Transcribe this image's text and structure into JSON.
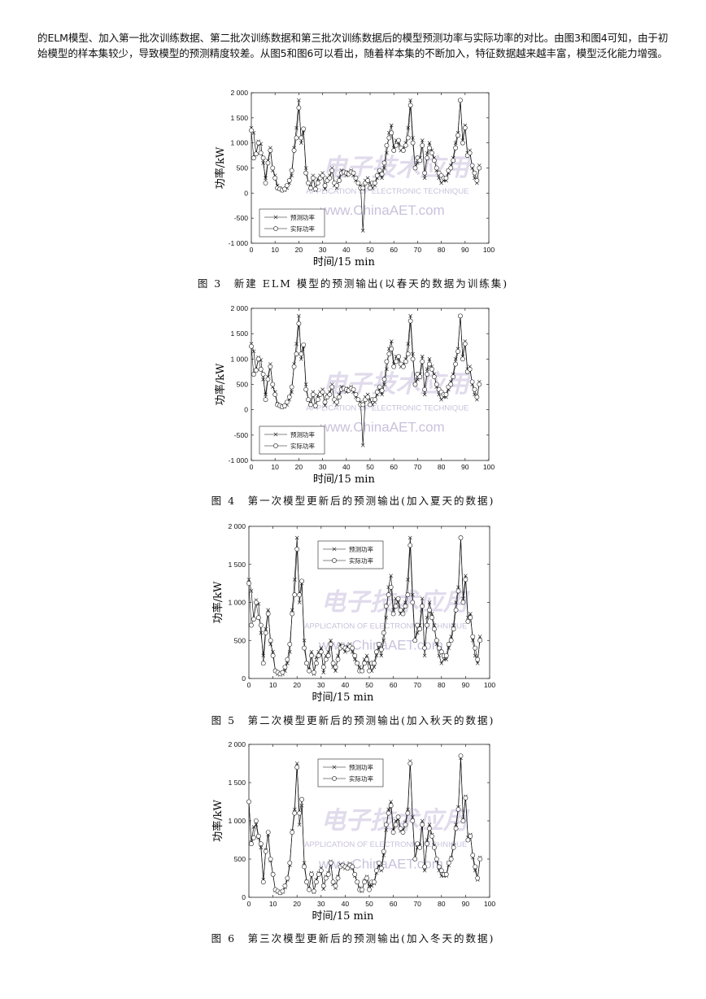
{
  "paragraph": "的ELM模型、加入第一批次训练数据、第二批次训练数据和第三批次训练数据后的模型预测功率与实际功率的对比。由图3和图4可知，由于初始模型的样本集较少，导致模型的预测精度较差。从图5和图6可以看出，随着样本集的不断加入，特征数据越来越丰富，模型泛化能力增强。",
  "watermark": {
    "logo": "电子技术应用",
    "line1": "APPLICATION OF ELECTRONIC TECHNIQUE",
    "line2": "www.ChinaAET.com",
    "color": "#c9c2dc"
  },
  "colors": {
    "line": "#111111",
    "axis": "#222222"
  },
  "figures": [
    {
      "caption": "图 3　新建 ELM 模型的预测输出(以春天的数据为训练集)",
      "ylabel": "功率/kW",
      "xlabel": "时间/15 min",
      "legend_position": "bottom-left",
      "chart_data": {
        "type": "line",
        "ylim": [
          -1000,
          2000
        ],
        "xlim": [
          0,
          100
        ],
        "yticks": [
          "-1 000",
          "-500",
          "0",
          "500",
          "1 000",
          "1 500",
          "2 000"
        ],
        "ytick_values": [
          -1000,
          -500,
          0,
          500,
          1000,
          1500,
          2000
        ],
        "xticks": [
          "0",
          "10",
          "20",
          "30",
          "40",
          "50",
          "60",
          "70",
          "80",
          "90",
          "100"
        ],
        "series": [
          {
            "name": "预测功率",
            "marker": "x",
            "values": [
              1300,
              1200,
              780,
              1030,
              980,
              600,
              300,
              650,
              900,
              450,
              350,
              150,
              100,
              50,
              60,
              100,
              200,
              350,
              900,
              1300,
              1850,
              1000,
              1250,
              500,
              200,
              120,
              350,
              60,
              280,
              350,
              400,
              80,
              300,
              350,
              500,
              150,
              100,
              300,
              450,
              400,
              350,
              420,
              450,
              350,
              250,
              200,
              150,
              -750,
              250,
              300,
              200,
              100,
              150,
              300,
              400,
              300,
              500,
              800,
              1200,
              1350,
              900,
              1050,
              1000,
              850,
              900,
              1000,
              1300,
              1850,
              1100,
              500,
              600,
              700,
              1050,
              300,
              800,
              1000,
              850,
              700,
              450,
              300,
              200,
              250,
              250,
              400,
              550,
              700,
              1000,
              1200,
              1850,
              1050,
              1350,
              800,
              850,
              500,
              300,
              200,
              550
            ]
          },
          {
            "name": "实际功率",
            "marker": "o",
            "values": [
              1250,
              700,
              780,
              1000,
              800,
              700,
              200,
              600,
              850,
              500,
              300,
              100,
              80,
              60,
              80,
              150,
              250,
              450,
              850,
              1100,
              1700,
              1100,
              1280,
              400,
              200,
              100,
              300,
              80,
              200,
              300,
              350,
              150,
              250,
              300,
              450,
              200,
              150,
              250,
              400,
              420,
              400,
              380,
              420,
              400,
              300,
              200,
              100,
              100,
              200,
              250,
              100,
              200,
              200,
              350,
              450,
              380,
              600,
              950,
              1100,
              1200,
              850,
              950,
              1050,
              900,
              850,
              950,
              1100,
              1750,
              1000,
              500,
              700,
              650,
              950,
              400,
              700,
              900,
              800,
              650,
              500,
              400,
              350,
              300,
              300,
              450,
              500,
              650,
              900,
              1150,
              1850,
              1000,
              1300,
              750,
              800,
              550,
              400,
              250,
              500
            ]
          }
        ]
      }
    },
    {
      "caption": "图 4　第一次模型更新后的预测输出(加入夏天的数据)",
      "ylabel": "功率/kW",
      "xlabel": "时间/15 min",
      "legend_position": "bottom-left",
      "chart_data": {
        "type": "line",
        "ylim": [
          -1000,
          2000
        ],
        "xlim": [
          0,
          100
        ],
        "yticks": [
          "-1 000",
          "-500",
          "0",
          "500",
          "1 000",
          "1 500",
          "2 000"
        ],
        "ytick_values": [
          -1000,
          -500,
          0,
          500,
          1000,
          1500,
          2000
        ],
        "xticks": [
          "0",
          "10",
          "20",
          "30",
          "40",
          "50",
          "60",
          "70",
          "80",
          "90",
          "100"
        ],
        "series": [
          {
            "name": "预测功率",
            "marker": "x",
            "values": [
              1300,
              1150,
              780,
              1030,
              980,
              600,
              300,
              650,
              900,
              450,
              350,
              120,
              80,
              50,
              60,
              100,
              200,
              350,
              900,
              1300,
              1850,
              1000,
              1250,
              500,
              200,
              120,
              350,
              60,
              280,
              350,
              400,
              80,
              300,
              350,
              500,
              150,
              100,
              300,
              450,
              400,
              350,
              420,
              450,
              350,
              250,
              200,
              150,
              -700,
              250,
              300,
              200,
              100,
              150,
              300,
              400,
              300,
              500,
              800,
              1200,
              1350,
              900,
              1050,
              1000,
              850,
              900,
              1000,
              1300,
              1850,
              1100,
              500,
              600,
              700,
              1050,
              300,
              800,
              1000,
              850,
              700,
              450,
              300,
              200,
              250,
              250,
              400,
              550,
              700,
              1000,
              1200,
              1850,
              1050,
              1350,
              800,
              850,
              500,
              300,
              200,
              550
            ]
          },
          {
            "name": "实际功率",
            "marker": "o",
            "values": [
              1250,
              700,
              780,
              1000,
              800,
              700,
              200,
              600,
              850,
              500,
              300,
              100,
              80,
              60,
              80,
              150,
              250,
              450,
              850,
              1100,
              1700,
              1100,
              1280,
              400,
              200,
              100,
              300,
              80,
              200,
              300,
              350,
              150,
              250,
              300,
              450,
              200,
              150,
              250,
              400,
              420,
              400,
              380,
              420,
              400,
              300,
              200,
              100,
              100,
              200,
              250,
              100,
              200,
              200,
              350,
              450,
              380,
              600,
              950,
              1100,
              1200,
              850,
              950,
              1050,
              900,
              850,
              950,
              1100,
              1750,
              1000,
              500,
              700,
              650,
              950,
              400,
              700,
              900,
              800,
              650,
              500,
              400,
              350,
              300,
              300,
              450,
              500,
              650,
              900,
              1150,
              1850,
              1000,
              1300,
              750,
              800,
              550,
              400,
              250,
              500
            ]
          }
        ]
      }
    },
    {
      "caption": "图 5　第二次模型更新后的预测输出(加入秋天的数据)",
      "ylabel": "功率/kW",
      "xlabel": "时间/15 min",
      "legend_position": "top-center",
      "chart_data": {
        "type": "line",
        "ylim": [
          0,
          2000
        ],
        "xlim": [
          0,
          100
        ],
        "yticks": [
          "0",
          "500",
          "1 000",
          "1 500",
          "2 000"
        ],
        "ytick_values": [
          0,
          500,
          1000,
          1500,
          2000
        ],
        "xticks": [
          "0",
          "10",
          "20",
          "30",
          "40",
          "50",
          "60",
          "70",
          "80",
          "90",
          "100"
        ],
        "series": [
          {
            "name": "预测功率",
            "marker": "x",
            "values": [
              1300,
              1150,
              780,
              1030,
              980,
              600,
              300,
              650,
              900,
              450,
              350,
              100,
              60,
              50,
              60,
              100,
              200,
              350,
              900,
              1300,
              1850,
              1000,
              1250,
              500,
              200,
              120,
              350,
              60,
              280,
              350,
              400,
              80,
              300,
              350,
              500,
              150,
              100,
              300,
              450,
              400,
              350,
              420,
              450,
              350,
              250,
              200,
              150,
              100,
              250,
              300,
              200,
              100,
              150,
              300,
              400,
              300,
              500,
              800,
              1200,
              1350,
              900,
              1050,
              1000,
              850,
              900,
              1000,
              1300,
              1850,
              1100,
              500,
              600,
              700,
              1050,
              300,
              800,
              1000,
              850,
              700,
              450,
              300,
              200,
              250,
              250,
              400,
              550,
              700,
              1000,
              1200,
              1850,
              1050,
              1350,
              800,
              850,
              500,
              300,
              200,
              550
            ]
          },
          {
            "name": "实际功率",
            "marker": "o",
            "values": [
              1250,
              700,
              780,
              1000,
              800,
              700,
              200,
              600,
              850,
              500,
              300,
              100,
              80,
              60,
              80,
              150,
              250,
              450,
              850,
              1100,
              1700,
              1100,
              1280,
              400,
              200,
              100,
              300,
              80,
              200,
              300,
              350,
              150,
              250,
              300,
              450,
              200,
              150,
              250,
              400,
              420,
              400,
              380,
              420,
              400,
              300,
              200,
              100,
              100,
              200,
              250,
              100,
              200,
              200,
              350,
              450,
              380,
              600,
              950,
              1100,
              1200,
              850,
              950,
              1050,
              900,
              850,
              950,
              1100,
              1750,
              1000,
              500,
              700,
              650,
              950,
              400,
              700,
              900,
              800,
              650,
              500,
              400,
              350,
              300,
              300,
              450,
              500,
              650,
              900,
              1150,
              1850,
              1000,
              1300,
              750,
              800,
              550,
              400,
              250,
              500
            ]
          }
        ]
      }
    },
    {
      "caption": "图 6　第三次模型更新后的预测输出(加入冬天的数据)",
      "ylabel": "功率/kW",
      "xlabel": "时间/15 min",
      "legend_position": "top-center",
      "chart_data": {
        "type": "line",
        "ylim": [
          0,
          2000
        ],
        "xlim": [
          0,
          100
        ],
        "yticks": [
          "0",
          "500",
          "1 000",
          "1 500",
          "2 000"
        ],
        "ytick_values": [
          0,
          500,
          1000,
          1500,
          2000
        ],
        "xticks": [
          "0",
          "10",
          "20",
          "30",
          "40",
          "50",
          "60",
          "70",
          "80",
          "90",
          "100"
        ],
        "series": [
          {
            "name": "预测功率",
            "marker": "x",
            "values": [
              1250,
              720,
              920,
              950,
              780,
              650,
              230,
              620,
              820,
              480,
              300,
              90,
              70,
              55,
              70,
              130,
              230,
              420,
              870,
              1150,
              1750,
              950,
              1200,
              450,
              210,
              110,
              320,
              70,
              230,
              320,
              380,
              110,
              270,
              320,
              470,
              170,
              120,
              270,
              430,
              410,
              380,
              400,
              440,
              380,
              280,
              200,
              120,
              80,
              220,
              270,
              150,
              150,
              180,
              320,
              420,
              350,
              550,
              880,
              1150,
              1250,
              880,
              1000,
              1020,
              870,
              880,
              980,
              1150,
              1780,
              1050,
              500,
              650,
              680,
              1000,
              350,
              750,
              950,
              820,
              680,
              480,
              350,
              280,
              280,
              280,
              420,
              520,
              680,
              950,
              1180,
              1820,
              1020,
              1320,
              780,
              820,
              520,
              350,
              230,
              520
            ]
          },
          {
            "name": "实际功率",
            "marker": "o",
            "values": [
              1250,
              700,
              780,
              1000,
              800,
              700,
              200,
              600,
              850,
              500,
              300,
              100,
              80,
              60,
              80,
              150,
              250,
              450,
              850,
              1100,
              1700,
              1100,
              1280,
              400,
              200,
              100,
              300,
              80,
              200,
              300,
              350,
              150,
              250,
              300,
              450,
              200,
              150,
              250,
              400,
              420,
              400,
              380,
              420,
              400,
              300,
              200,
              100,
              100,
              200,
              250,
              100,
              200,
              200,
              350,
              450,
              380,
              600,
              950,
              1100,
              1200,
              850,
              950,
              1050,
              900,
              850,
              950,
              1100,
              1750,
              1000,
              500,
              700,
              650,
              950,
              400,
              700,
              900,
              800,
              650,
              500,
              400,
              350,
              300,
              300,
              450,
              500,
              650,
              900,
              1150,
              1850,
              1000,
              1300,
              750,
              800,
              550,
              400,
              250,
              500
            ]
          }
        ]
      }
    }
  ]
}
